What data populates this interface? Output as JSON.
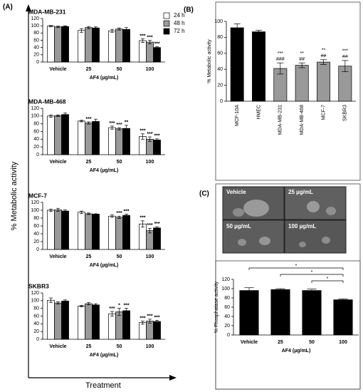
{
  "panel_labels": [
    "(A)",
    "(B)",
    "(C)"
  ],
  "panel_a": {
    "ylabel": "% Metabolic activity",
    "xlabel": "Treatment"
  },
  "micrographs": [
    "Vehicle",
    "25 µg/mL",
    "50 µg/mL",
    "100 µg/mL"
  ],
  "chart_data": [
    {
      "type": "bar",
      "title": "MDA-MB-231",
      "categories": [
        "Vehicle",
        "25",
        "50",
        "100"
      ],
      "xlabel": "AF4 (µg/mL)",
      "ylim": [
        0,
        120
      ],
      "yticks": [
        0,
        20,
        40,
        60,
        80,
        100,
        120
      ],
      "legend": "top-right",
      "series": [
        {
          "name": "24 h",
          "color": "#ffffff",
          "values": [
            99,
            87,
            86,
            59
          ],
          "errors": [
            2,
            5,
            4,
            5
          ],
          "annotations": [
            null,
            null,
            null,
            "***"
          ]
        },
        {
          "name": "48 h",
          "color": "#999999",
          "values": [
            97,
            95,
            91,
            55
          ],
          "errors": [
            2,
            3,
            3,
            5
          ],
          "annotations": [
            null,
            null,
            null,
            "***"
          ]
        },
        {
          "name": "72 h",
          "color": "#000000",
          "values": [
            98,
            94,
            90,
            40
          ],
          "errors": [
            2,
            3,
            5,
            2
          ],
          "annotations": [
            null,
            null,
            null,
            "***"
          ]
        }
      ]
    },
    {
      "type": "bar",
      "title": "MDA-MB-468",
      "categories": [
        "Vehicle",
        "25",
        "50",
        "100"
      ],
      "xlabel": "AF4 (µg/mL)",
      "ylim": [
        0,
        120
      ],
      "yticks": [
        0,
        20,
        40,
        60,
        80,
        100,
        120
      ],
      "series": [
        {
          "color": "#ffffff",
          "values": [
            100,
            87,
            70,
            47
          ],
          "errors": [
            3,
            2,
            4,
            7
          ],
          "annotations": [
            null,
            null,
            "***",
            "***"
          ]
        },
        {
          "color": "#999999",
          "values": [
            101,
            82,
            67,
            40
          ],
          "errors": [
            2,
            3,
            3,
            6
          ],
          "annotations": [
            null,
            "***",
            "***",
            "***"
          ]
        },
        {
          "color": "#000000",
          "values": [
            104,
            86,
            68,
            38
          ],
          "errors": [
            4,
            6,
            8,
            3
          ],
          "annotations": [
            null,
            null,
            "**",
            "***"
          ]
        }
      ]
    },
    {
      "type": "bar",
      "title": "MCF-7",
      "categories": [
        "Vehicle",
        "25",
        "50",
        "100"
      ],
      "xlabel": "AF4 (µg/mL)",
      "ylim": [
        0,
        120
      ],
      "yticks": [
        0,
        20,
        40,
        60,
        80,
        100,
        120
      ],
      "series": [
        {
          "color": "#ffffff",
          "values": [
            100,
            95,
            85,
            65
          ],
          "errors": [
            3,
            3,
            3,
            8
          ],
          "annotations": [
            null,
            null,
            null,
            "***"
          ]
        },
        {
          "color": "#999999",
          "values": [
            101,
            91,
            82,
            48
          ],
          "errors": [
            4,
            2,
            3,
            6
          ],
          "annotations": [
            null,
            null,
            "***",
            "***"
          ]
        },
        {
          "color": "#000000",
          "values": [
            98,
            90,
            87,
            55
          ],
          "errors": [
            3,
            1,
            3,
            3
          ],
          "annotations": [
            null,
            null,
            "***",
            "***"
          ]
        }
      ]
    },
    {
      "type": "bar",
      "title": "SKBR3",
      "categories": [
        "Vehicle",
        "25",
        "50",
        "100"
      ],
      "xlabel": "AF4 (µg/mL)",
      "ylim": [
        0,
        120
      ],
      "yticks": [
        0,
        20,
        40,
        60,
        80,
        100,
        120
      ],
      "series": [
        {
          "color": "#ffffff",
          "values": [
            101,
            86,
            66,
            43
          ],
          "errors": [
            6,
            2,
            6,
            4
          ],
          "annotations": [
            null,
            null,
            "***",
            "***"
          ]
        },
        {
          "color": "#999999",
          "values": [
            94,
            92,
            71,
            47
          ],
          "errors": [
            3,
            3,
            9,
            5
          ],
          "annotations": [
            null,
            null,
            "*",
            "***"
          ]
        },
        {
          "color": "#000000",
          "values": [
            99,
            89,
            74,
            46
          ],
          "errors": [
            3,
            3,
            6,
            3
          ],
          "annotations": [
            null,
            null,
            "***",
            "***"
          ]
        }
      ]
    },
    {
      "type": "bar",
      "ylabel": "% Metabolic activity",
      "categories": [
        "MCF-10A",
        "HMEC",
        "MDA-MB-231",
        "MDA-MB-468",
        "MCF-7",
        "SKBR3"
      ],
      "values": [
        92,
        87,
        41,
        45,
        49,
        44
      ],
      "errors": [
        5,
        2,
        7,
        3,
        3,
        7
      ],
      "colors": [
        "#000000",
        "#000000",
        "#999999",
        "#999999",
        "#999999",
        "#999999"
      ],
      "annotations": [
        null,
        null,
        "***",
        "**",
        "**",
        "***"
      ],
      "annotations2": [
        null,
        null,
        "###",
        "##",
        "##",
        "##"
      ],
      "ylim": [
        0,
        100
      ],
      "yticks": [
        0,
        20,
        40,
        60,
        80,
        100
      ]
    },
    {
      "type": "bar",
      "ylabel": "% Phosphatase activity",
      "xlabel": "AF4 (µg/mL)",
      "categories": [
        "Vehicle",
        "25",
        "50",
        "100"
      ],
      "values": [
        96,
        98,
        96,
        76
      ],
      "errors": [
        6,
        2,
        3,
        2
      ],
      "color": "#000000",
      "significance": [
        "*",
        "*",
        "*"
      ],
      "ylim": [
        0,
        120
      ],
      "yticks": [
        0,
        20,
        40,
        60,
        80,
        100,
        120
      ]
    }
  ]
}
